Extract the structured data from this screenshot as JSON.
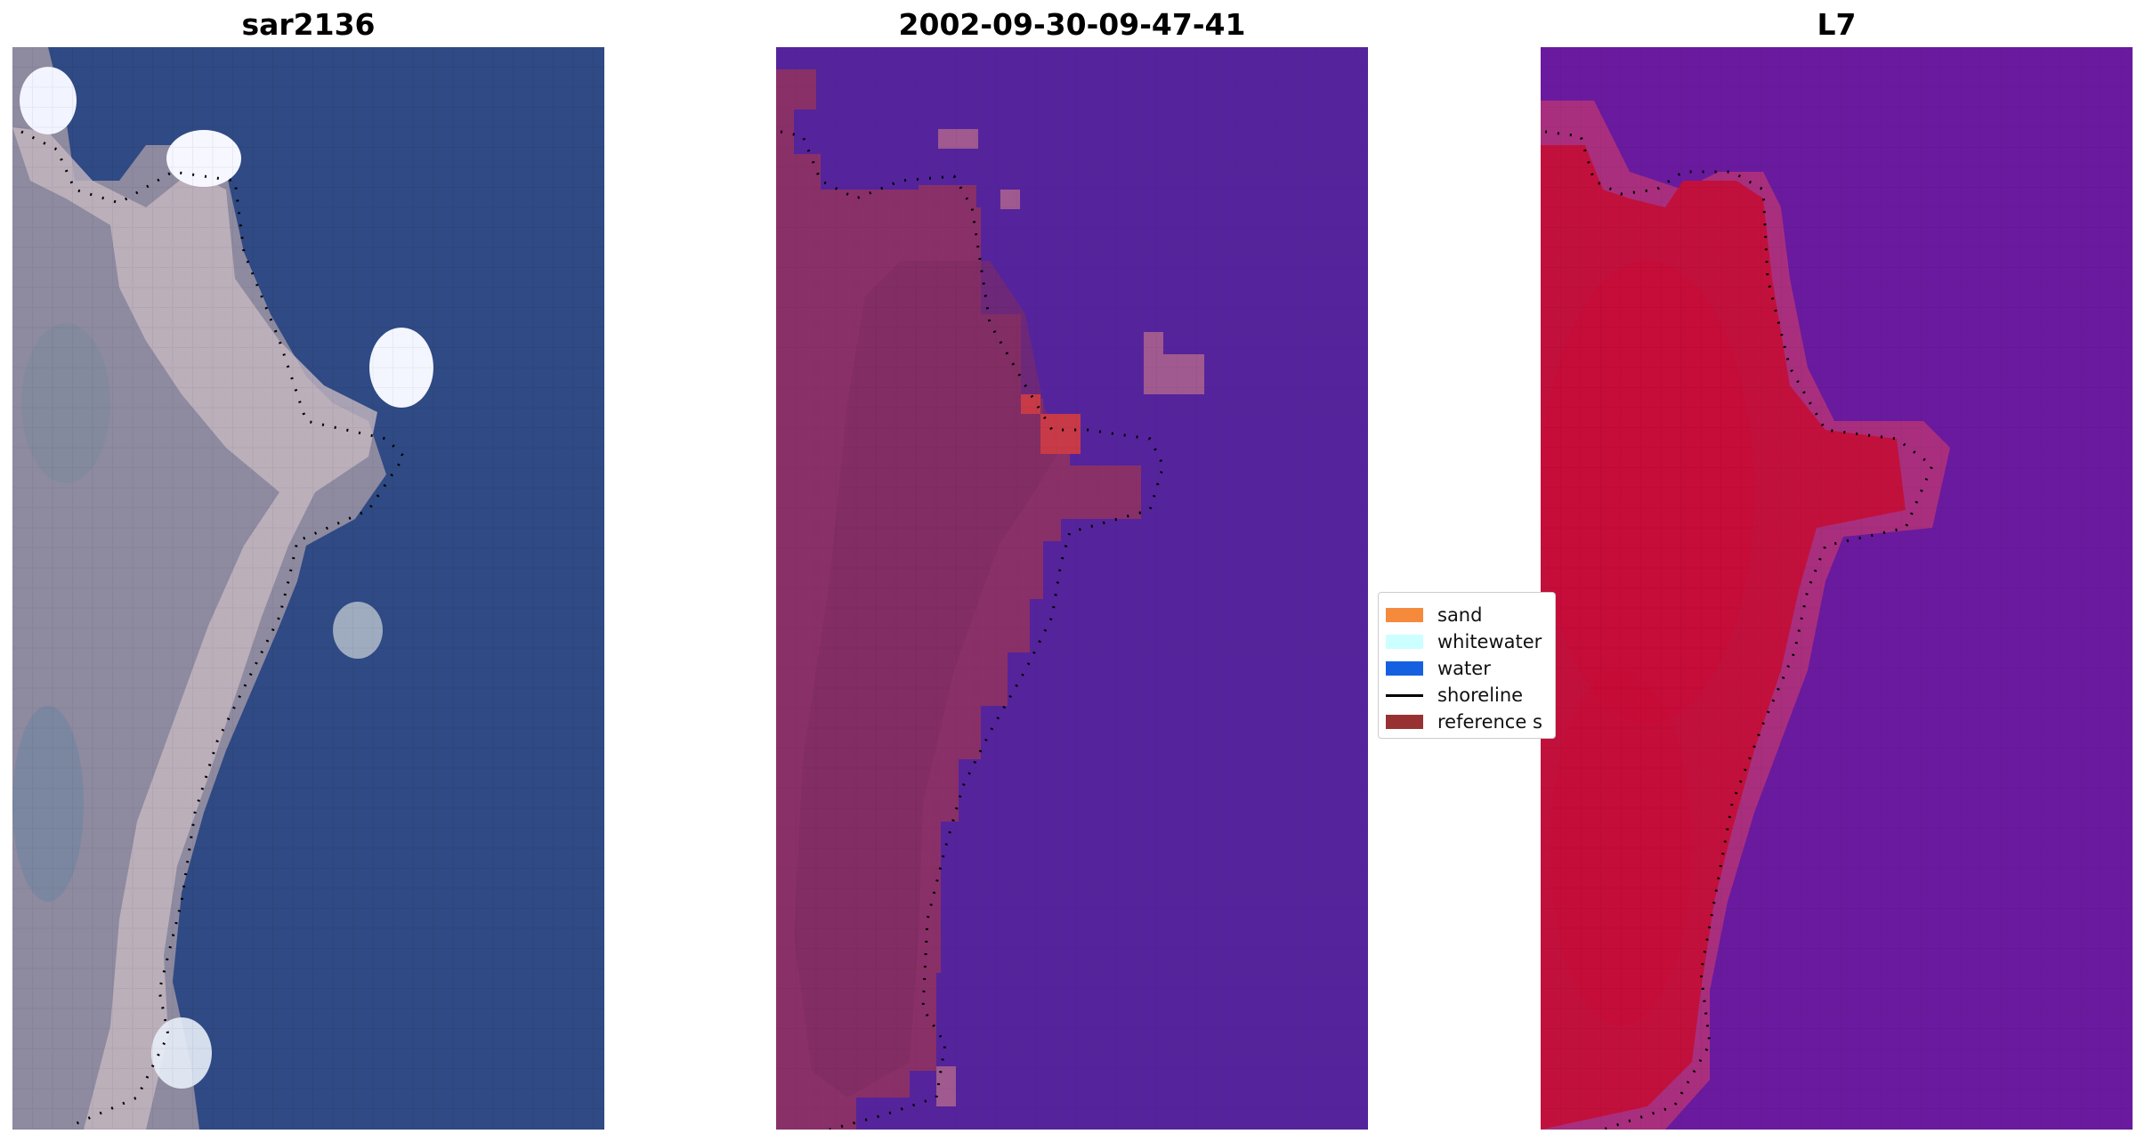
{
  "panels": [
    {
      "title": "sar2136"
    },
    {
      "title": "2002-09-30-09-47-41"
    },
    {
      "title": "L7"
    }
  ],
  "legend": {
    "items": [
      {
        "label": "sand",
        "color": "#f58a3c",
        "kind": "patch"
      },
      {
        "label": "whitewater",
        "color": "#ccffff",
        "kind": "patch"
      },
      {
        "label": "water",
        "color": "#1560e0",
        "kind": "patch"
      },
      {
        "label": "shoreline",
        "color": "#000000",
        "kind": "line"
      },
      {
        "label": "reference s",
        "color": "#983232",
        "kind": "patch"
      }
    ]
  },
  "colors": {
    "rgb_water": "#2f4a84",
    "rgb_land": "#8e8aa0",
    "classified_water": "#55249c",
    "classified_land": "#8a3068",
    "l7_water": "#6a1a9e",
    "l7_land": "#c2103c"
  }
}
